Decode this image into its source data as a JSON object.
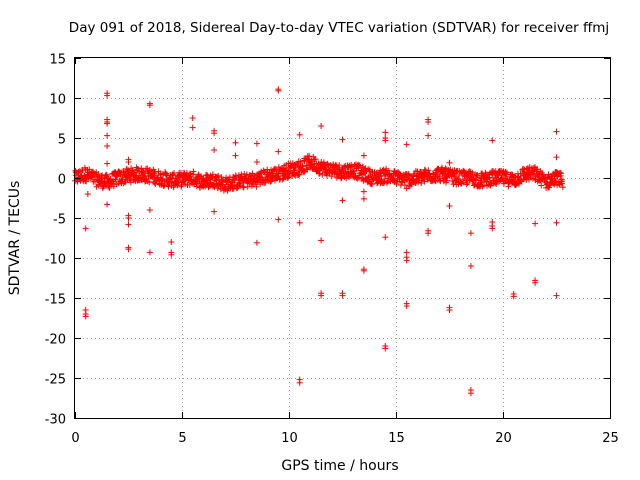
{
  "chart_data": {
    "type": "scatter",
    "title": "Day 091 of 2018, Sidereal Day-to-day VTEC variation (SDTVAR) for receiver ffmj",
    "xlabel": "GPS time / hours",
    "ylabel": "SDTVAR / TECUs",
    "xlim": [
      0,
      25
    ],
    "ylim": [
      -30,
      15
    ],
    "xticks": [
      0,
      5,
      10,
      15,
      20,
      25
    ],
    "yticks": [
      -30,
      -25,
      -20,
      -15,
      -10,
      -5,
      0,
      5,
      10,
      15
    ],
    "xtick_labels": [
      "0",
      "5",
      "10",
      "15",
      "20",
      "25"
    ],
    "ytick_labels": [
      "-30",
      "-25",
      "-20",
      "-15",
      "-10",
      "-5",
      "0",
      "5",
      "10",
      "15"
    ],
    "grid": true,
    "marker": "+",
    "color": "#ff0000",
    "series": [
      {
        "name": "SDTVAR",
        "dense_band": [
          [
            0.0,
            0.0
          ],
          [
            0.5,
            0.5
          ],
          [
            1.0,
            -0.2
          ],
          [
            1.5,
            -0.5
          ],
          [
            2.0,
            0.0
          ],
          [
            2.5,
            0.3
          ],
          [
            3.0,
            0.5
          ],
          [
            3.5,
            0.3
          ],
          [
            4.0,
            0.0
          ],
          [
            4.5,
            -0.3
          ],
          [
            5.0,
            -0.2
          ],
          [
            5.5,
            0.0
          ],
          [
            6.0,
            -0.5
          ],
          [
            6.5,
            -0.2
          ],
          [
            7.0,
            -0.8
          ],
          [
            7.5,
            -0.5
          ],
          [
            8.0,
            -0.3
          ],
          [
            8.5,
            -0.2
          ],
          [
            9.0,
            0.3
          ],
          [
            9.5,
            0.5
          ],
          [
            10.0,
            1.0
          ],
          [
            10.5,
            1.3
          ],
          [
            11.0,
            2.0
          ],
          [
            11.5,
            1.3
          ],
          [
            12.0,
            1.0
          ],
          [
            12.5,
            0.8
          ],
          [
            13.0,
            1.0
          ],
          [
            13.5,
            0.5
          ],
          [
            14.0,
            0.0
          ],
          [
            14.5,
            0.3
          ],
          [
            15.0,
            0.0
          ],
          [
            15.5,
            -0.2
          ],
          [
            16.0,
            0.0
          ],
          [
            16.5,
            0.3
          ],
          [
            17.0,
            0.5
          ],
          [
            17.5,
            0.2
          ],
          [
            18.0,
            0.0
          ],
          [
            18.5,
            0.0
          ],
          [
            19.0,
            -0.3
          ],
          [
            19.5,
            0.0
          ],
          [
            20.0,
            0.0
          ],
          [
            20.5,
            -0.3
          ],
          [
            21.0,
            0.5
          ],
          [
            21.5,
            0.5
          ],
          [
            22.0,
            -0.5
          ],
          [
            22.5,
            0.0
          ],
          [
            22.8,
            -0.3
          ]
        ],
        "outliers": [
          [
            0.5,
            -6.3
          ],
          [
            0.5,
            -16.5
          ],
          [
            0.5,
            -17.0
          ],
          [
            0.5,
            -17.3
          ],
          [
            0.5,
            1.0
          ],
          [
            0.6,
            -2.0
          ],
          [
            1.5,
            10.6
          ],
          [
            1.5,
            10.3
          ],
          [
            1.5,
            7.3
          ],
          [
            1.5,
            7.0
          ],
          [
            1.5,
            6.8
          ],
          [
            1.5,
            5.3
          ],
          [
            1.5,
            4.0
          ],
          [
            1.5,
            1.8
          ],
          [
            1.5,
            -3.3
          ],
          [
            2.5,
            2.3
          ],
          [
            2.5,
            2.0
          ],
          [
            2.5,
            -4.7
          ],
          [
            2.5,
            -5.0
          ],
          [
            2.5,
            -5.8
          ],
          [
            2.5,
            -8.7
          ],
          [
            2.5,
            -8.9
          ],
          [
            3.5,
            9.3
          ],
          [
            3.5,
            9.1
          ],
          [
            3.5,
            -4.0
          ],
          [
            3.5,
            -9.3
          ],
          [
            4.5,
            -8.0
          ],
          [
            4.5,
            -9.3
          ],
          [
            4.5,
            -9.6
          ],
          [
            5.5,
            7.5
          ],
          [
            5.5,
            6.3
          ],
          [
            6.5,
            5.9
          ],
          [
            6.5,
            5.6
          ],
          [
            6.5,
            3.5
          ],
          [
            6.5,
            -4.2
          ],
          [
            7.5,
            4.4
          ],
          [
            7.5,
            2.8
          ],
          [
            8.5,
            4.3
          ],
          [
            8.5,
            2.0
          ],
          [
            8.5,
            -8.1
          ],
          [
            9.5,
            11.1
          ],
          [
            9.5,
            10.9
          ],
          [
            9.5,
            3.3
          ],
          [
            9.5,
            -5.2
          ],
          [
            10.5,
            5.4
          ],
          [
            10.5,
            -25.2
          ],
          [
            10.5,
            -25.6
          ],
          [
            10.5,
            -5.6
          ],
          [
            11.5,
            6.5
          ],
          [
            11.5,
            -7.8
          ],
          [
            11.5,
            -14.4
          ],
          [
            11.5,
            -14.7
          ],
          [
            12.5,
            4.8
          ],
          [
            12.5,
            -2.8
          ],
          [
            12.5,
            -14.4
          ],
          [
            12.5,
            -14.7
          ],
          [
            13.5,
            2.8
          ],
          [
            13.5,
            -1.7
          ],
          [
            13.5,
            -2.6
          ],
          [
            13.5,
            -11.4
          ],
          [
            13.5,
            -11.6
          ],
          [
            14.5,
            5.7
          ],
          [
            14.5,
            5.0
          ],
          [
            14.5,
            4.7
          ],
          [
            14.5,
            -7.4
          ],
          [
            14.5,
            -21.0
          ],
          [
            14.5,
            -21.3
          ],
          [
            15.5,
            4.2
          ],
          [
            15.5,
            -1.3
          ],
          [
            15.5,
            -9.3
          ],
          [
            15.5,
            -9.9
          ],
          [
            15.5,
            -10.3
          ],
          [
            15.5,
            -15.7
          ],
          [
            15.5,
            -16.0
          ],
          [
            16.5,
            7.3
          ],
          [
            16.5,
            7.0
          ],
          [
            16.5,
            5.3
          ],
          [
            16.5,
            -6.6
          ],
          [
            16.5,
            -6.9
          ],
          [
            17.5,
            1.9
          ],
          [
            17.5,
            -3.5
          ],
          [
            17.5,
            -16.2
          ],
          [
            17.5,
            -16.5
          ],
          [
            18.5,
            -6.9
          ],
          [
            18.5,
            -11.0
          ],
          [
            18.5,
            -26.5
          ],
          [
            18.5,
            -26.9
          ],
          [
            19.5,
            4.7
          ],
          [
            19.5,
            -5.5
          ],
          [
            19.5,
            -6.0
          ],
          [
            19.5,
            -6.3
          ],
          [
            20.5,
            -14.5
          ],
          [
            20.5,
            -14.8
          ],
          [
            21.5,
            -5.7
          ],
          [
            21.5,
            -12.8
          ],
          [
            21.5,
            -13.1
          ],
          [
            22.5,
            5.8
          ],
          [
            22.5,
            2.6
          ],
          [
            22.5,
            -5.6
          ],
          [
            22.5,
            -14.7
          ]
        ]
      }
    ]
  }
}
